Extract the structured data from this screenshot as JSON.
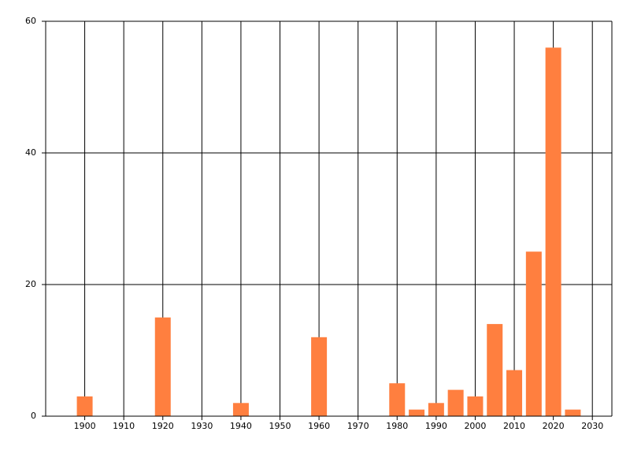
{
  "chart_data": {
    "type": "bar",
    "x": [
      1900,
      1920,
      1940,
      1960,
      1980,
      1985,
      1990,
      1995,
      2000,
      2005,
      2010,
      2015,
      2020,
      2025
    ],
    "values": [
      3,
      15,
      2,
      12,
      5,
      1,
      2,
      4,
      3,
      14,
      7,
      25,
      56,
      1
    ],
    "color": "#ff7f3f",
    "xlim": [
      1890,
      2035
    ],
    "xticks": [
      1900,
      1910,
      1920,
      1930,
      1940,
      1950,
      1960,
      1970,
      1980,
      1990,
      2000,
      2010,
      2020,
      2030
    ],
    "ylim": [
      0,
      60
    ],
    "yticks": [
      0,
      20,
      40,
      60
    ],
    "grid": true
  }
}
